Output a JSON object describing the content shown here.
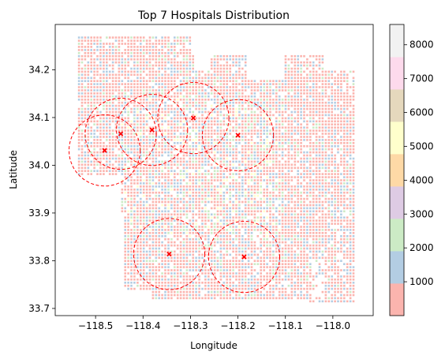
{
  "chart_data": {
    "type": "scatter",
    "title": "Top 7 Hospitals Distribution",
    "xlabel": "Longitude",
    "ylabel": "Latitude",
    "xlim": [
      -118.585,
      -117.915
    ],
    "ylim": [
      33.685,
      34.295
    ],
    "xticks": [
      -118.5,
      -118.4,
      -118.3,
      -118.2,
      -118.1,
      -118.0
    ],
    "xtick_labels": [
      "−118.5",
      "−118.4",
      "−118.3",
      "−118.2",
      "−118.1",
      "−118.0"
    ],
    "yticks": [
      33.7,
      33.8,
      33.9,
      34.0,
      34.1,
      34.2
    ],
    "ytick_labels": [
      "33.7",
      "33.8",
      "33.9",
      "34.0",
      "34.1",
      "34.2"
    ],
    "grid": false,
    "hospitals": [
      {
        "lon": -118.481,
        "lat": 34.031
      },
      {
        "lon": -118.447,
        "lat": 34.066
      },
      {
        "lon": -118.381,
        "lat": 34.074
      },
      {
        "lon": -118.294,
        "lat": 34.099
      },
      {
        "lon": -118.2,
        "lat": 34.063
      },
      {
        "lon": -118.345,
        "lat": 33.814
      },
      {
        "lon": -118.187,
        "lat": 33.808
      }
    ],
    "hospital_marker_color": "#ff0000",
    "coverage_circle_radius_deg": 0.075,
    "coverage_circle_color": "#ff0000",
    "coverage_circle_style": "dashed",
    "points_region": {
      "description_bounds": {
        "lon_min": -118.535,
        "lon_max": -117.95,
        "lat_min": 33.715,
        "lat_max": 34.27
      }
    },
    "colorbar": {
      "min": 0,
      "max": 8600,
      "ticks": [
        1000,
        2000,
        3000,
        4000,
        5000,
        6000,
        7000,
        8000
      ],
      "tick_labels": [
        "1000",
        "2000",
        "3000",
        "4000",
        "5000",
        "6000",
        "7000",
        "8000"
      ],
      "colormap": "Pastel1",
      "colors": [
        "#fbb4ae",
        "#b3cde3",
        "#ccebc5",
        "#decbe4",
        "#fed9a6",
        "#ffffcc",
        "#e5d8bd",
        "#fddaec",
        "#f2f2f2"
      ]
    }
  }
}
